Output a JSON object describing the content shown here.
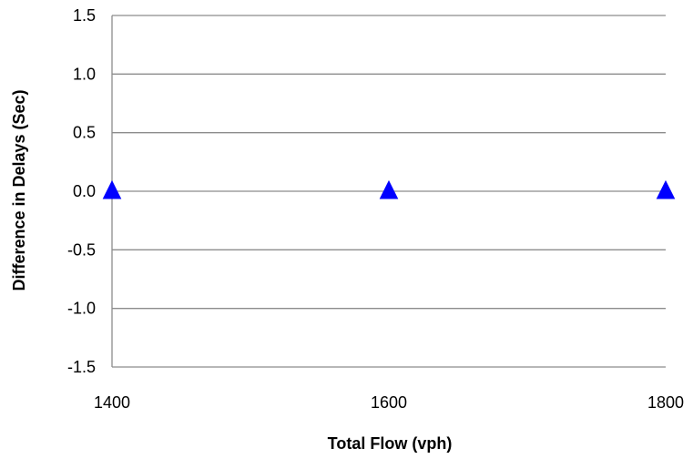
{
  "chart_data": {
    "type": "scatter",
    "title": "",
    "xlabel": "Total Flow (vph)",
    "ylabel": "Difference in Delays (Sec)",
    "xlim": [
      1400,
      1800
    ],
    "ylim": [
      -1.5,
      1.5
    ],
    "x_ticks": [
      "1400",
      "1600",
      "1800"
    ],
    "y_ticks": [
      "1.5",
      "1.0",
      "0.5",
      "0.0",
      "-0.5",
      "-1.0",
      "-1.5"
    ],
    "grid": true,
    "legend": "none",
    "series": [
      {
        "marker": "triangle",
        "color": "#0000ff",
        "points": [
          {
            "x": 1400,
            "y": 0.0
          },
          {
            "x": 1600,
            "y": 0.0
          },
          {
            "x": 1800,
            "y": 0.0
          }
        ]
      }
    ]
  }
}
